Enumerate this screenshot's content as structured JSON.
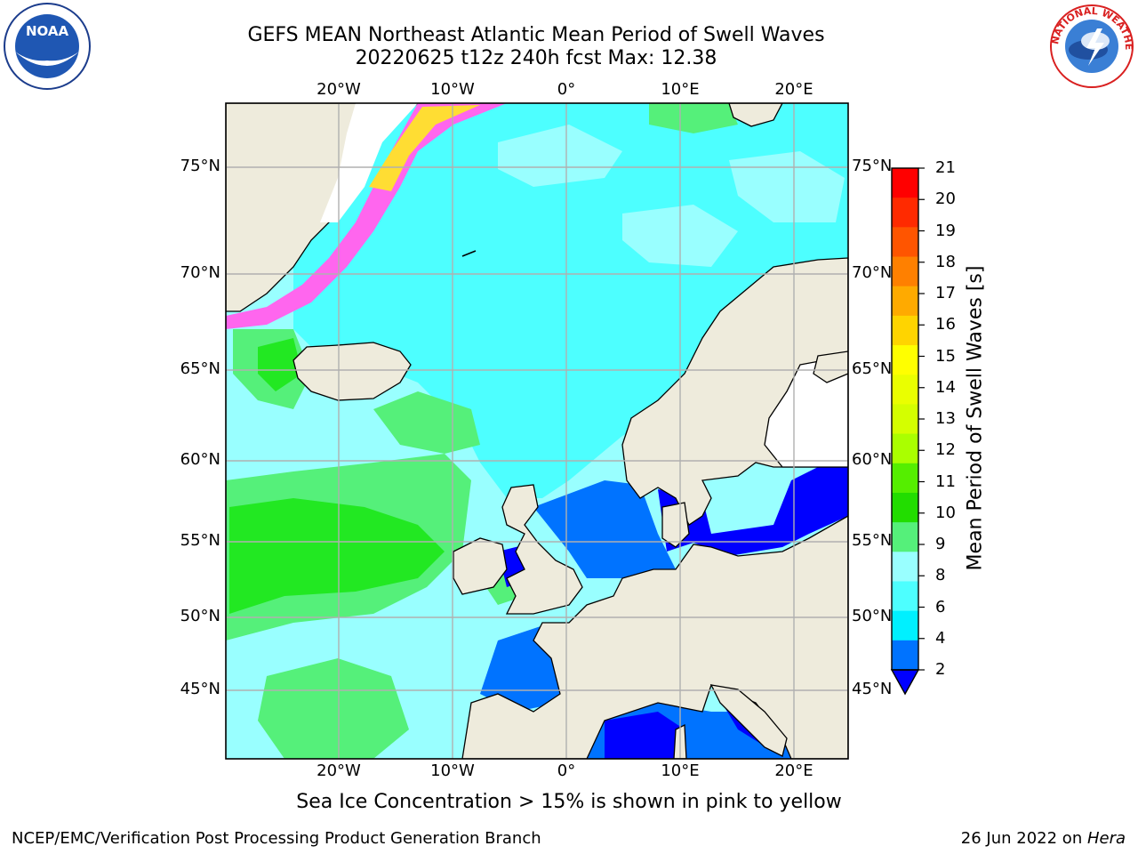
{
  "header": {
    "title_line1": "GEFS MEAN Northeast Atlantic Mean Period of Swell Waves",
    "title_line2": "20220625 t12z 240h fcst   Max: 12.38"
  },
  "logos": {
    "left": {
      "name": "noaa-logo",
      "text": "NOAA"
    },
    "right": {
      "name": "nws-logo",
      "text": "NATIONAL WEATHER SERVICE"
    }
  },
  "map": {
    "lon_labels": [
      "20°W",
      "10°W",
      "0°",
      "10°E",
      "20°E"
    ],
    "lat_labels": [
      "75°N",
      "70°N",
      "65°N",
      "60°N",
      "55°N",
      "50°N",
      "45°N"
    ],
    "colors": {
      "ocean_base": "#99ffff",
      "ocean_cyan": "#4dffff",
      "ocean_deep": "#0073ff",
      "ocean_blue": "#0000ff",
      "green_light": "#55f07a",
      "green": "#22e822",
      "land": "#eeebdc",
      "ice_pink": "#ff66ee",
      "ice_yellow": "#ffdd33",
      "grid": "#b0b0b0"
    }
  },
  "colorbar": {
    "label": "Mean Period of Swell Waves [s]",
    "ticks": [
      "21",
      "20",
      "19",
      "18",
      "17",
      "16",
      "15",
      "14",
      "13",
      "12",
      "11",
      "10",
      "9",
      "8",
      "6",
      "4",
      "2"
    ],
    "colors_top_to_bottom": [
      "#ff0000",
      "#ff2a00",
      "#ff5500",
      "#ff8000",
      "#ffaa00",
      "#ffd400",
      "#ffff00",
      "#eaff00",
      "#d4ff00",
      "#aaff00",
      "#55ee00",
      "#22dd00",
      "#55f07a",
      "#99ffff",
      "#4dffff",
      "#00f0ff",
      "#0073ff",
      "#0000ff"
    ]
  },
  "note": "Sea Ice Concentration > 15% is shown in pink to yellow",
  "footer": {
    "left": "NCEP/EMC/Verification Post Processing Product Generation Branch",
    "right_prefix": "26 Jun 2022 on ",
    "right_machine": "Hera"
  }
}
